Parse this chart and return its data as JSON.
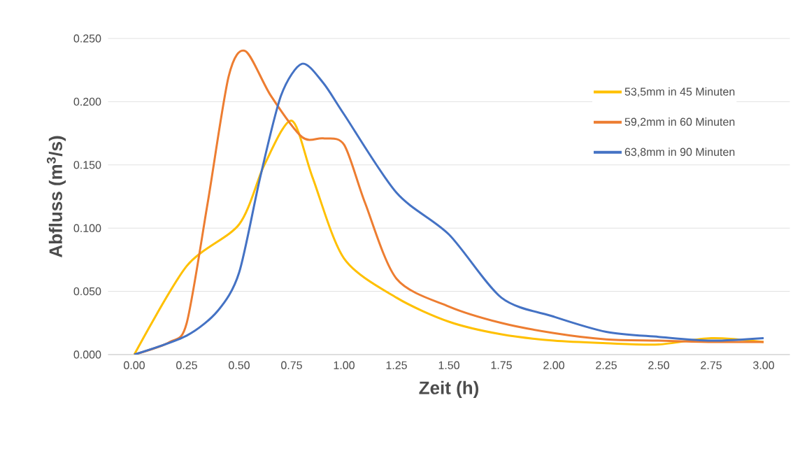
{
  "chart_data": {
    "type": "line",
    "xlabel": "Zeit (h)",
    "ylabel": "Abfluss (m$^{3}$/s)",
    "xlim": [
      -0.125,
      3.125
    ],
    "ylim": [
      0,
      0.25
    ],
    "xticks": [
      {
        "value": 0,
        "label": "0.00"
      },
      {
        "value": 0.25,
        "label": "0.25"
      },
      {
        "value": 0.5,
        "label": "0.50"
      },
      {
        "value": 0.75,
        "label": "0.75"
      },
      {
        "value": 1,
        "label": "1.00"
      },
      {
        "value": 1.25,
        "label": "1.25"
      },
      {
        "value": 1.5,
        "label": "1.50"
      },
      {
        "value": 1.75,
        "label": "1.75"
      },
      {
        "value": 2,
        "label": "2.00"
      },
      {
        "value": 2.25,
        "label": "2.25"
      },
      {
        "value": 2.5,
        "label": "2.50"
      },
      {
        "value": 2.75,
        "label": "2.75"
      },
      {
        "value": 3,
        "label": "3.00"
      }
    ],
    "yticks": [
      {
        "value": 0,
        "label": "0.000"
      },
      {
        "value": 0.05,
        "label": "0.050"
      },
      {
        "value": 0.1,
        "label": "0.100"
      },
      {
        "value": 0.15,
        "label": "0.150"
      },
      {
        "value": 0.2,
        "label": "0.200"
      },
      {
        "value": 0.25,
        "label": "0.250"
      }
    ],
    "grid": "y",
    "legend": "right",
    "marker": "none",
    "line_style": "solid",
    "series": [
      {
        "name": "53,5mm in 45 Minuten",
        "color": "#ffc000",
        "x": [
          0,
          0.25,
          0.5,
          0.62,
          0.75,
          0.85,
          1.0,
          1.25,
          1.5,
          1.75,
          2.0,
          2.25,
          2.5,
          2.75,
          3.0
        ],
        "values": [
          0,
          0.07,
          0.103,
          0.15,
          0.185,
          0.14,
          0.076,
          0.045,
          0.026,
          0.016,
          0.011,
          0.009,
          0.008,
          0.013,
          0.01
        ]
      },
      {
        "name": "59,2mm in 60 Minuten",
        "color": "#ed7d31",
        "x": [
          0,
          0.17,
          0.25,
          0.35,
          0.45,
          0.53,
          0.65,
          0.8,
          0.9,
          1.0,
          1.1,
          1.25,
          1.5,
          1.75,
          2.0,
          2.25,
          2.5,
          2.75,
          3.0
        ],
        "values": [
          0,
          0.01,
          0.025,
          0.12,
          0.22,
          0.24,
          0.205,
          0.172,
          0.171,
          0.166,
          0.12,
          0.06,
          0.038,
          0.025,
          0.017,
          0.012,
          0.011,
          0.01,
          0.01
        ]
      },
      {
        "name": "63,8mm in 90 Minuten",
        "color": "#4472c4",
        "x": [
          0,
          0.25,
          0.4,
          0.5,
          0.6,
          0.7,
          0.8,
          0.9,
          1.0,
          1.25,
          1.5,
          1.75,
          2.0,
          2.25,
          2.5,
          2.75,
          3.0
        ],
        "values": [
          0,
          0.015,
          0.035,
          0.065,
          0.14,
          0.205,
          0.23,
          0.215,
          0.19,
          0.128,
          0.095,
          0.045,
          0.03,
          0.018,
          0.014,
          0.011,
          0.013
        ]
      }
    ]
  }
}
